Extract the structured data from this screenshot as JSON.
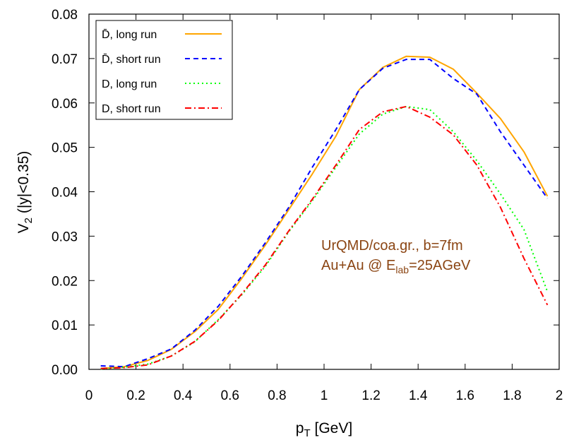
{
  "chart_data": {
    "type": "line",
    "title": "",
    "xlabel": "p",
    "xlabel_sub": "T",
    "xlabel_unit": " [GeV]",
    "ylabel": "V",
    "ylabel_sub": "2",
    "ylabel_rest": " (|y|<0.35)",
    "xlim": [
      0,
      2
    ],
    "ylim": [
      0,
      0.08
    ],
    "x_ticks": [
      0,
      0.2,
      0.4,
      0.6,
      0.8,
      1,
      1.2,
      1.4,
      1.6,
      1.8,
      2
    ],
    "x_tick_labels": [
      "0",
      "0.2",
      "0.4",
      "0.6",
      "0.8",
      "1",
      "1.2",
      "1.4",
      "1.6",
      "1.8",
      "2"
    ],
    "y_ticks": [
      0,
      0.01,
      0.02,
      0.03,
      0.04,
      0.05,
      0.06,
      0.07,
      0.08
    ],
    "y_tick_labels": [
      "0.00",
      "0.01",
      "0.02",
      "0.03",
      "0.04",
      "0.05",
      "0.06",
      "0.07",
      "0.08"
    ],
    "grid": false,
    "legend_position": "top-left",
    "series": [
      {
        "name": "D̄, long run",
        "color": "#FFA500",
        "style": "solid",
        "x": [
          0.05,
          0.15,
          0.25,
          0.35,
          0.45,
          0.55,
          0.65,
          0.75,
          0.85,
          0.95,
          1.05,
          1.15,
          1.25,
          1.35,
          1.45,
          1.55,
          1.65,
          1.75,
          1.85,
          1.95
        ],
        "y": [
          0.0002,
          0.0006,
          0.002,
          0.0045,
          0.0085,
          0.0135,
          0.0205,
          0.028,
          0.036,
          0.044,
          0.0525,
          0.063,
          0.068,
          0.0705,
          0.0703,
          0.0676,
          0.0622,
          0.0565,
          0.049,
          0.039
        ]
      },
      {
        "name": "D̄, short run",
        "color": "#0000FF",
        "style": "dashed",
        "x": [
          0.05,
          0.15,
          0.25,
          0.35,
          0.45,
          0.55,
          0.65,
          0.75,
          0.85,
          0.95,
          1.05,
          1.15,
          1.25,
          1.35,
          1.45,
          1.55,
          1.65,
          1.75,
          1.85,
          1.95
        ],
        "y": [
          0.0008,
          0.0006,
          0.0024,
          0.0046,
          0.0088,
          0.0142,
          0.021,
          0.0285,
          0.0365,
          0.0455,
          0.054,
          0.063,
          0.0678,
          0.0698,
          0.0698,
          0.0655,
          0.062,
          0.0535,
          0.046,
          0.0385
        ]
      },
      {
        "name": "D, long run",
        "color": "#00FF00",
        "style": "dotted",
        "x": [
          0.05,
          0.15,
          0.25,
          0.35,
          0.45,
          0.55,
          0.65,
          0.75,
          0.85,
          0.95,
          1.05,
          1.15,
          1.25,
          1.35,
          1.45,
          1.55,
          1.65,
          1.75,
          1.85,
          1.95
        ],
        "y": [
          0.0001,
          0.0005,
          0.0012,
          0.003,
          0.0062,
          0.0112,
          0.0168,
          0.0232,
          0.031,
          0.038,
          0.0455,
          0.053,
          0.0575,
          0.0592,
          0.0585,
          0.0535,
          0.047,
          0.0395,
          0.0315,
          0.0175
        ]
      },
      {
        "name": "D, short run",
        "color": "#FF0000",
        "style": "dashdot",
        "x": [
          0.05,
          0.15,
          0.25,
          0.35,
          0.45,
          0.55,
          0.65,
          0.75,
          0.85,
          0.95,
          1.05,
          1.15,
          1.25,
          1.35,
          1.45,
          1.55,
          1.65,
          1.75,
          1.85,
          1.95
        ],
        "y": [
          0.0002,
          0.0004,
          0.001,
          0.003,
          0.0063,
          0.011,
          0.017,
          0.0235,
          0.0312,
          0.0383,
          0.046,
          0.054,
          0.058,
          0.0592,
          0.0568,
          0.0528,
          0.046,
          0.0365,
          0.025,
          0.0145
        ]
      }
    ],
    "annotations": [
      {
        "text": "UrQMD/coa.gr., b=7fm",
        "color": "#8B4513"
      },
      {
        "text_main": "Au+Au @ E",
        "text_sub": "lab",
        "text_end": "=25AGeV",
        "color": "#8B4513"
      }
    ]
  }
}
